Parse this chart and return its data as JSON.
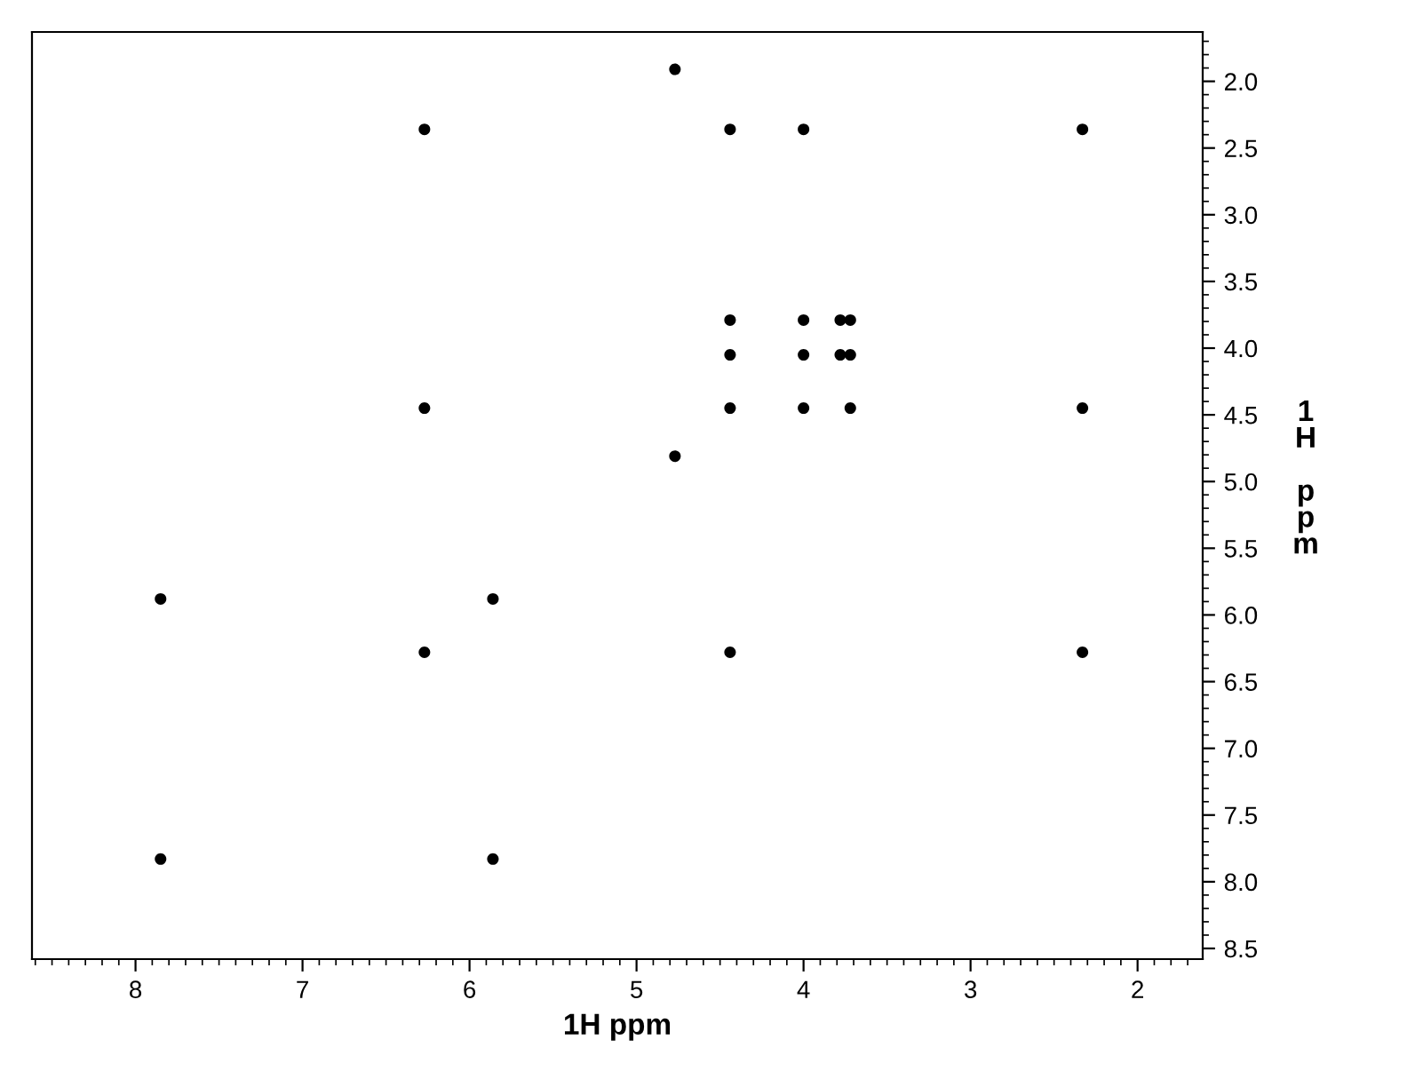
{
  "chart_data": {
    "type": "scatter",
    "xlabel": "1H ppm",
    "ylabel": "1H ppm",
    "series": [
      {
        "color": "#000000",
        "x": [
          4.77,
          6.27,
          4.44,
          4.0,
          2.33,
          4.44,
          4.0,
          3.78,
          3.72,
          4.44,
          4.0,
          3.78,
          3.72,
          6.27,
          4.44,
          4.0,
          3.72,
          2.33,
          4.77,
          7.85,
          5.86,
          6.27,
          4.44,
          2.33,
          7.85,
          5.86
        ],
        "values": [
          1.91,
          2.36,
          2.36,
          2.36,
          2.36,
          3.79,
          3.79,
          3.79,
          3.79,
          4.05,
          4.05,
          4.05,
          4.05,
          4.45,
          4.45,
          4.45,
          4.45,
          4.45,
          4.81,
          5.88,
          5.88,
          6.28,
          6.28,
          6.28,
          7.83,
          7.83
        ]
      }
    ],
    "xlim": [
      8.62,
      1.61
    ],
    "xticks": [
      8,
      7,
      6,
      5,
      4,
      3,
      2
    ],
    "ylim": [
      8.58,
      1.63
    ],
    "yticks": [
      {
        "value": 2,
        "label": "2.0"
      },
      2.5,
      {
        "value": 3,
        "label": "3.0"
      },
      3.5,
      {
        "value": 4,
        "label": "4.0"
      },
      4.5,
      {
        "value": 5,
        "label": "5.0"
      },
      5.5,
      {
        "value": 6,
        "label": "6.0"
      },
      6.5,
      {
        "value": 7,
        "label": "7.0"
      },
      7.5,
      {
        "value": 8,
        "label": "8.0"
      },
      8.5
    ],
    "marker": "circle",
    "grid": false,
    "legend": false
  }
}
